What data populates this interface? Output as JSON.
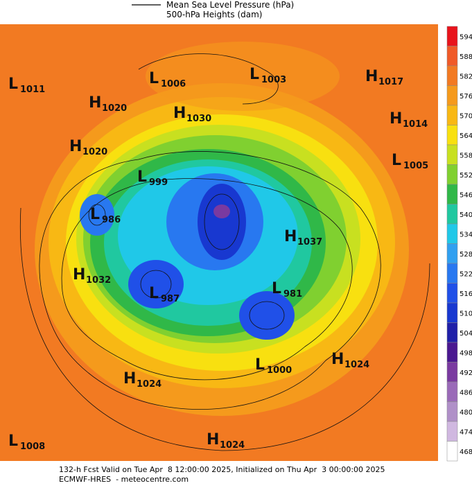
{
  "header": {
    "legend_line_label": "Mean Sea Level Pressure (hPa)",
    "subtitle": "500-hPa Heights (dam)"
  },
  "centers": [
    {
      "letter": "L",
      "pressure": 1011
    },
    {
      "letter": "L",
      "pressure": 1006
    },
    {
      "letter": "L",
      "pressure": 1003
    },
    {
      "letter": "H",
      "pressure": 1017
    },
    {
      "letter": "H",
      "pressure": 1020
    },
    {
      "letter": "H",
      "pressure": 1030
    },
    {
      "letter": "H",
      "pressure": 1014
    },
    {
      "letter": "H",
      "pressure": 1020
    },
    {
      "letter": "L",
      "pressure": 1005
    },
    {
      "letter": "L",
      "pressure": 999
    },
    {
      "letter": "L",
      "pressure": 986
    },
    {
      "letter": "H",
      "pressure": 1037
    },
    {
      "letter": "H",
      "pressure": 1032
    },
    {
      "letter": "L",
      "pressure": 987
    },
    {
      "letter": "L",
      "pressure": 981
    },
    {
      "letter": "L",
      "pressure": 1000
    },
    {
      "letter": "H",
      "pressure": 1024
    },
    {
      "letter": "H",
      "pressure": 1024
    },
    {
      "letter": "L",
      "pressure": 1008
    },
    {
      "letter": "H",
      "pressure": 1024
    }
  ],
  "colorbar": {
    "ticks": [
      594,
      588,
      582,
      576,
      570,
      564,
      558,
      552,
      546,
      540,
      534,
      528,
      522,
      516,
      510,
      504,
      498,
      492,
      486,
      480,
      474,
      468
    ],
    "colors": [
      "#e8141c",
      "#f05a28",
      "#f27a22",
      "#f59a1c",
      "#f8b814",
      "#f8e010",
      "#c8e020",
      "#80d030",
      "#30b848",
      "#20c8a0",
      "#20c8e8",
      "#30a0f0",
      "#2878f0",
      "#2050e8",
      "#1838d0",
      "#2020a8",
      "#4a1890",
      "#7a3aa0",
      "#9a6ab8",
      "#b090c8",
      "#d0b8e0",
      "#ffffff"
    ]
  },
  "footer": {
    "line1": "132-h Fcst Valid on Tue Apr  8 12:00:00 2025, Initialized on Thu Apr  3 00:00:00 2025",
    "line2": "ECMWF-HRES  - meteocentre.com"
  }
}
